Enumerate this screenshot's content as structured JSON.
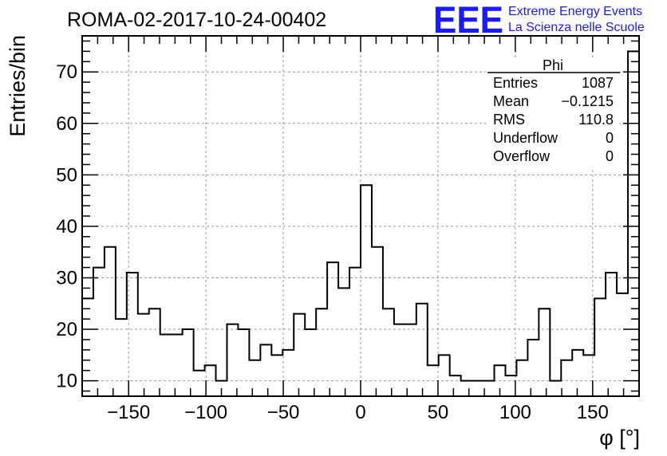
{
  "chart_data": {
    "type": "histogram",
    "title": "ROMA-02-2017-10-24-00402",
    "xlabel": "φ [°]",
    "ylabel": "Entries/bin",
    "xlim": [
      -180,
      180
    ],
    "ylim": [
      7,
      77
    ],
    "xticks": [
      -150,
      -100,
      -50,
      0,
      50,
      100,
      150
    ],
    "yticks": [
      10,
      20,
      30,
      40,
      50,
      60,
      70
    ],
    "grid": true,
    "bin_width": 7.2,
    "bin_low_edges": [
      -180,
      -172.8,
      -165.6,
      -158.4,
      -151.2,
      -144,
      -136.8,
      -129.6,
      -122.4,
      -115.2,
      -108,
      -100.8,
      -93.6,
      -86.4,
      -79.2,
      -72,
      -64.8,
      -57.6,
      -50.4,
      -43.2,
      -36,
      -28.8,
      -21.6,
      -14.4,
      -7.2,
      0,
      7.2,
      14.4,
      21.6,
      28.8,
      36,
      43.2,
      50.4,
      57.6,
      64.8,
      72,
      79.2,
      86.4,
      93.6,
      100.8,
      108,
      115.2,
      122.4,
      129.6,
      136.8,
      144,
      151.2,
      158.4,
      165.6,
      172.8
    ],
    "counts": [
      26,
      32,
      36,
      22,
      31,
      23,
      24,
      19,
      19,
      20,
      12,
      13,
      10,
      21,
      20,
      14,
      17,
      15,
      16,
      23,
      20,
      24,
      33,
      28,
      32,
      48,
      36,
      24,
      21,
      21,
      25,
      13,
      15,
      11,
      10,
      10,
      10,
      13,
      11,
      14,
      18,
      24,
      10,
      14,
      16,
      15,
      26,
      31,
      27,
      74
    ],
    "stats_box": {
      "title": "Phi",
      "rows": [
        {
          "label": "Entries",
          "value": "1087"
        },
        {
          "label": "Mean",
          "value": "−0.1215"
        },
        {
          "label": "RMS",
          "value": "110.8"
        },
        {
          "label": "Underflow",
          "value": "0"
        },
        {
          "label": "Overflow",
          "value": "0"
        }
      ]
    },
    "logo": {
      "mark": "EEE",
      "line1": "Extreme Energy Events",
      "line2": "La Scienza nelle Scuole",
      "color": "#1a1aff"
    }
  }
}
